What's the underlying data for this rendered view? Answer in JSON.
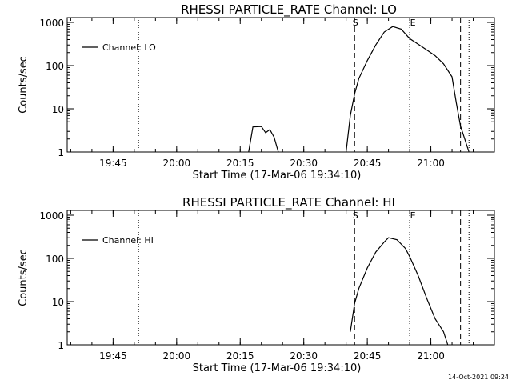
{
  "charts": [
    {
      "type": "line",
      "title": "RHESSI PARTICLE_RATE Channel: LO",
      "xlabel": "Start Time (17-Mar-06 19:34:10)",
      "ylabel": "Counts/sec",
      "x_ticks": [
        "19:45",
        "20:00",
        "20:15",
        "20:30",
        "20:45",
        "21:00"
      ],
      "y_ticks": [
        "1",
        "10",
        "100",
        "1000"
      ],
      "y_scale": "log",
      "ylim": [
        1,
        1000
      ],
      "xlim": [
        "19:34:10",
        "21:15"
      ],
      "legend_label": "Channel: LO",
      "legend_placement": "top-left",
      "markers": {
        "start": "S",
        "end": "E"
      },
      "dotted_lines": [
        "19:51",
        "21:09"
      ],
      "dashed_lines": [
        "20:42",
        "21:07"
      ],
      "marker_lines": [
        "20:42",
        "20:55"
      ],
      "series": [
        {
          "name": "Channel: LO",
          "segments": [
            [
              [
                "20:17",
                1
              ],
              [
                "20:18",
                3.8
              ],
              [
                "20:20",
                3.9
              ],
              [
                "20:21",
                2.8
              ],
              [
                "20:22",
                3.3
              ],
              [
                "20:23",
                2.2
              ],
              [
                "20:24",
                1
              ]
            ],
            [
              [
                "20:40",
                1
              ],
              [
                "20:41",
                7
              ],
              [
                "20:42",
                22
              ],
              [
                "20:43",
                50
              ],
              [
                "20:45",
                130
              ],
              [
                "20:47",
                300
              ],
              [
                "20:49",
                600
              ],
              [
                "20:51",
                800
              ],
              [
                "20:53",
                700
              ],
              [
                "20:55",
                420
              ],
              [
                "20:58",
                270
              ],
              [
                "21:01",
                170
              ],
              [
                "21:03",
                110
              ],
              [
                "21:05",
                55
              ],
              [
                "21:06",
                14
              ],
              [
                "21:07",
                4
              ],
              [
                "21:08",
                2
              ],
              [
                "21:09",
                1
              ]
            ]
          ]
        }
      ]
    },
    {
      "type": "line",
      "title": "RHESSI PARTICLE_RATE Channel: HI",
      "xlabel": "Start Time (17-Mar-06 19:34:10)",
      "ylabel": "Counts/sec",
      "x_ticks": [
        "19:45",
        "20:00",
        "20:15",
        "20:30",
        "20:45",
        "21:00"
      ],
      "y_ticks": [
        "1",
        "10",
        "100",
        "1000"
      ],
      "y_scale": "log",
      "ylim": [
        1,
        1000
      ],
      "xlim": [
        "19:34:10",
        "21:15"
      ],
      "legend_label": "Channel: HI",
      "legend_placement": "top-left",
      "markers": {
        "start": "S",
        "end": "E"
      },
      "dotted_lines": [
        "19:51",
        "21:09"
      ],
      "dashed_lines": [
        "20:42",
        "21:07"
      ],
      "marker_lines": [
        "20:42",
        "20:55"
      ],
      "series": [
        {
          "name": "Channel: HI",
          "segments": [
            [
              [
                "20:41",
                2
              ],
              [
                "20:42",
                9
              ],
              [
                "20:43",
                20
              ],
              [
                "20:45",
                60
              ],
              [
                "20:47",
                140
              ],
              [
                "20:49",
                240
              ],
              [
                "20:50",
                300
              ],
              [
                "20:52",
                270
              ],
              [
                "20:54",
                170
              ],
              [
                "20:55",
                110
              ],
              [
                "20:57",
                40
              ],
              [
                "20:59",
                12
              ],
              [
                "21:01",
                4
              ],
              [
                "21:03",
                2
              ],
              [
                "21:04",
                1
              ]
            ]
          ]
        }
      ]
    }
  ],
  "footer": {
    "timestamp": "14-Oct-2021 09:24"
  }
}
